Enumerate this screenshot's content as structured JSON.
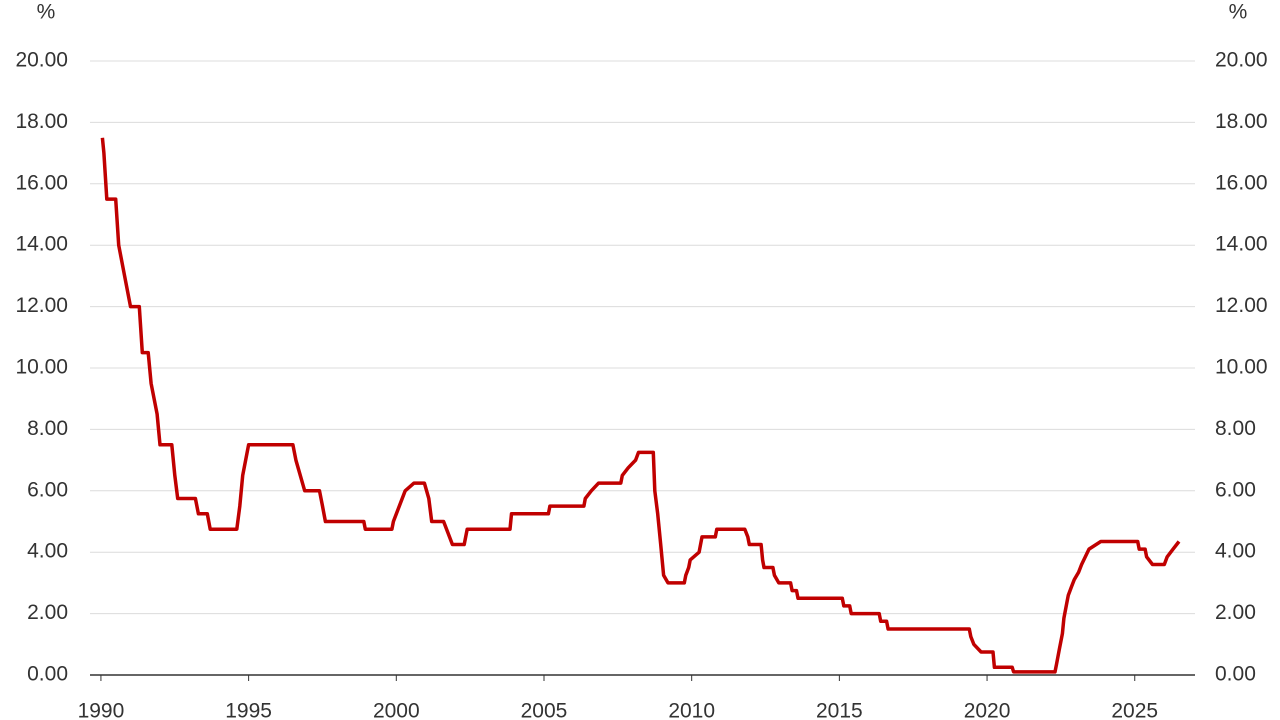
{
  "chart_data": {
    "type": "line",
    "y_label": "%",
    "y2_label": "%",
    "x": [
      1990.05,
      1990.1,
      1990.2,
      1990.5,
      1990.6,
      1990.8,
      1991.0,
      1991.3,
      1991.4,
      1991.6,
      1991.7,
      1991.9,
      1992.0,
      1992.4,
      1992.5,
      1992.6,
      1993.2,
      1993.3,
      1993.6,
      1993.7,
      1994.6,
      1994.7,
      1994.8,
      1995.0,
      1996.5,
      1996.6,
      1996.9,
      1997.4,
      1997.5,
      1997.6,
      1998.9,
      1998.95,
      1999.85,
      1999.9,
      2000.1,
      2000.3,
      2000.6,
      2000.95,
      2001.1,
      2001.2,
      2001.6,
      2001.8,
      2001.9,
      2002.3,
      2002.4,
      2003.85,
      2003.9,
      2005.15,
      2005.2,
      2006.35,
      2006.4,
      2006.6,
      2006.85,
      2007.6,
      2007.65,
      2007.85,
      2008.1,
      2008.2,
      2008.7,
      2008.75,
      2008.85,
      2008.95,
      2009.05,
      2009.2,
      2009.75,
      2009.8,
      2009.9,
      2009.95,
      2010.25,
      2010.35,
      2010.8,
      2010.85,
      2011.8,
      2011.9,
      2011.95,
      2012.35,
      2012.4,
      2012.45,
      2012.75,
      2012.8,
      2012.95,
      2013.35,
      2013.4,
      2013.55,
      2013.6,
      2015.1,
      2015.15,
      2015.35,
      2015.4,
      2016.35,
      2016.4,
      2016.6,
      2016.65,
      2019.4,
      2019.45,
      2019.55,
      2019.8,
      2020.2,
      2020.25,
      2020.85,
      2020.9,
      2022.3,
      2022.35,
      2022.45,
      2022.55,
      2022.6,
      2022.7,
      2022.75,
      2022.85,
      2022.95,
      2023.1,
      2023.2,
      2023.45,
      2023.85,
      2025.1,
      2025.15,
      2025.35,
      2025.4,
      2025.6,
      2026.0,
      2026.1,
      2026.3,
      2026.5
    ],
    "values": [
      17.5,
      17.0,
      15.5,
      15.5,
      14.0,
      13.0,
      12.0,
      12.0,
      10.5,
      10.5,
      9.5,
      8.5,
      7.5,
      7.5,
      6.5,
      5.75,
      5.75,
      5.25,
      5.25,
      4.75,
      4.75,
      5.5,
      6.5,
      7.5,
      7.5,
      7.0,
      6.0,
      6.0,
      5.5,
      5.0,
      5.0,
      4.75,
      4.75,
      5.0,
      5.5,
      6.0,
      6.25,
      6.25,
      5.75,
      5.0,
      5.0,
      4.5,
      4.25,
      4.25,
      4.75,
      4.75,
      5.25,
      5.25,
      5.5,
      5.5,
      5.75,
      6.0,
      6.25,
      6.25,
      6.5,
      6.75,
      7.0,
      7.25,
      7.25,
      6.0,
      5.25,
      4.25,
      3.25,
      3.0,
      3.0,
      3.25,
      3.5,
      3.75,
      4.0,
      4.5,
      4.5,
      4.75,
      4.75,
      4.5,
      4.25,
      4.25,
      3.75,
      3.5,
      3.5,
      3.25,
      3.0,
      3.0,
      2.75,
      2.75,
      2.5,
      2.5,
      2.25,
      2.25,
      2.0,
      2.0,
      1.75,
      1.75,
      1.5,
      1.5,
      1.25,
      1.0,
      0.75,
      0.75,
      0.25,
      0.25,
      0.1,
      0.1,
      0.35,
      0.85,
      1.35,
      1.85,
      2.35,
      2.6,
      2.85,
      3.1,
      3.35,
      3.6,
      4.1,
      4.35,
      4.35,
      4.1,
      4.1,
      3.85,
      3.6,
      3.6,
      3.85,
      4.1,
      4.35
    ],
    "color": "#c00000",
    "xlim": [
      1989.63,
      2027.04
    ],
    "xticks": [
      1990,
      1995,
      2000,
      2005,
      2010,
      2015,
      2020,
      2025
    ],
    "ylim": [
      0,
      20
    ],
    "yticks": [
      {
        "value": 0,
        "label": "0.00"
      },
      {
        "value": 2,
        "label": "2.00"
      },
      {
        "value": 4,
        "label": "4.00"
      },
      {
        "value": 6,
        "label": "6.00"
      },
      {
        "value": 8,
        "label": "8.00"
      },
      {
        "value": 10,
        "label": "10.00"
      },
      {
        "value": 12,
        "label": "12.00"
      },
      {
        "value": 14,
        "label": "14.00"
      },
      {
        "value": 16,
        "label": "16.00"
      },
      {
        "value": 18,
        "label": "18.00"
      },
      {
        "value": 20,
        "label": "20.00"
      }
    ],
    "y2lim": [
      0,
      20
    ],
    "y2ticks": [
      {
        "value": 0,
        "label": "0.00"
      },
      {
        "value": 2,
        "label": "2.00"
      },
      {
        "value": 4,
        "label": "4.00"
      },
      {
        "value": 6,
        "label": "6.00"
      },
      {
        "value": 8,
        "label": "8.00"
      },
      {
        "value": 10,
        "label": "10.00"
      },
      {
        "value": 12,
        "label": "12.00"
      },
      {
        "value": 14,
        "label": "14.00"
      },
      {
        "value": 16,
        "label": "16.00"
      },
      {
        "value": 18,
        "label": "18.00"
      },
      {
        "value": 20,
        "label": "20.00"
      }
    ],
    "grid": true
  }
}
